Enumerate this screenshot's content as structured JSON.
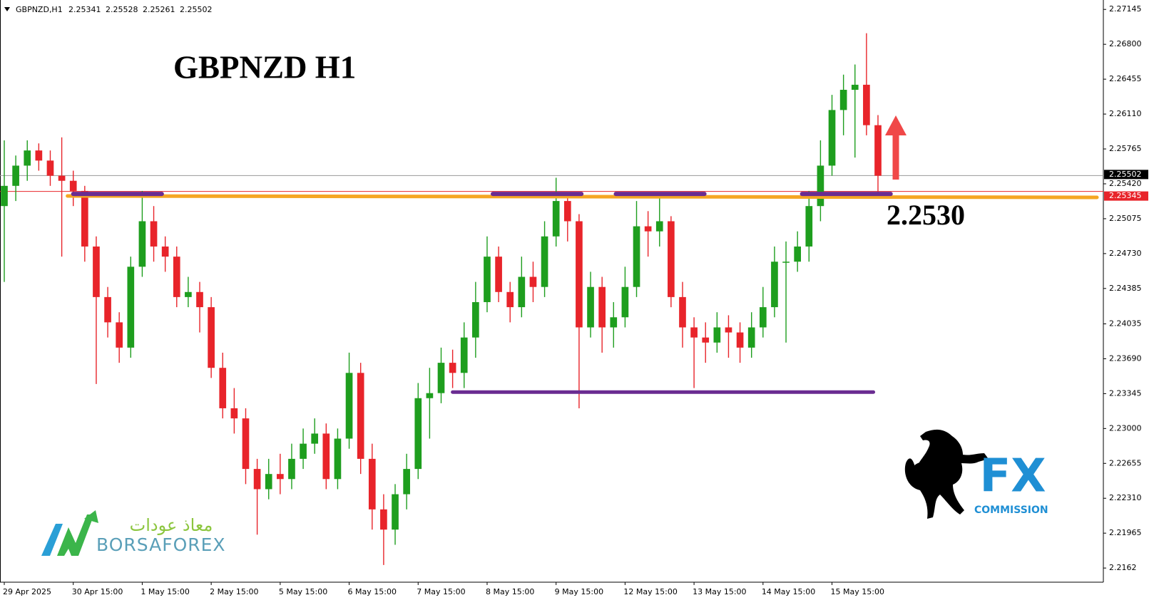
{
  "chart_data": {
    "type": "candlestick",
    "title": "GBPNZD   H1",
    "header_symbol": "GBPNZD,H1",
    "header_ohlc": [
      2.25341,
      2.25528,
      2.25261,
      2.25502
    ],
    "categories": [
      "29 Apr 2025",
      null,
      null,
      null,
      null,
      null,
      "30 Apr 15:00",
      null,
      null,
      null,
      null,
      null,
      "1 May 15:00",
      null,
      null,
      null,
      null,
      null,
      "2 May 15:00",
      null,
      null,
      null,
      null,
      null,
      "5 May 15:00",
      null,
      null,
      null,
      null,
      null,
      "6 May 15:00",
      null,
      null,
      null,
      null,
      null,
      "7 May 15:00",
      null,
      null,
      null,
      null,
      null,
      "8 May 15:00",
      null,
      null,
      null,
      null,
      null,
      "9 May 15:00",
      null,
      null,
      null,
      null,
      null,
      "12 May 15:00",
      null,
      null,
      null,
      null,
      null,
      "13 May 15:00",
      null,
      null,
      null,
      null,
      null,
      "14 May 15:00",
      null,
      null,
      null,
      null,
      null,
      "15 May 15:00",
      null,
      null,
      null,
      null
    ],
    "open": [
      2.252,
      2.254,
      2.256,
      2.2575,
      2.2565,
      2.255,
      2.2545,
      2.2535,
      2.248,
      2.243,
      2.2405,
      2.238,
      2.246,
      2.2505,
      2.248,
      2.247,
      2.243,
      2.2435,
      2.242,
      2.236,
      2.232,
      2.231,
      2.226,
      2.224,
      2.2255,
      2.225,
      2.227,
      2.2285,
      2.2295,
      2.225,
      2.229,
      2.2355,
      2.227,
      2.222,
      2.22,
      2.2235,
      2.226,
      2.233,
      2.2335,
      2.2365,
      2.2355,
      2.239,
      2.2425,
      2.247,
      2.2435,
      2.242,
      2.245,
      2.244,
      2.249,
      2.2525,
      2.2505,
      2.24,
      2.244,
      2.24,
      2.241,
      2.244,
      2.25,
      2.2495,
      2.2505,
      2.243,
      2.24,
      2.239,
      2.2385,
      2.24,
      2.2395,
      2.238,
      2.24,
      2.242,
      2.2465,
      2.2465,
      2.248,
      2.252,
      2.256,
      2.2615,
      2.2635,
      2.264,
      2.26
    ],
    "high": [
      2.2585,
      2.257,
      2.2585,
      2.2582,
      2.2575,
      2.2588,
      2.2555,
      2.254,
      2.249,
      2.244,
      2.2415,
      2.247,
      2.2535,
      2.252,
      2.249,
      2.248,
      2.245,
      2.2445,
      2.243,
      2.2375,
      2.234,
      2.232,
      2.227,
      2.227,
      2.2275,
      2.2285,
      2.23,
      2.231,
      2.2305,
      2.23,
      2.2375,
      2.2365,
      2.2285,
      2.2235,
      2.2245,
      2.2275,
      2.2345,
      2.236,
      2.238,
      2.2378,
      2.2405,
      2.2445,
      2.249,
      2.248,
      2.2445,
      2.247,
      2.2465,
      2.2505,
      2.2548,
      2.253,
      2.2512,
      2.2455,
      2.245,
      2.2425,
      2.246,
      2.2525,
      2.2515,
      2.2532,
      2.251,
      2.2445,
      2.241,
      2.2405,
      2.2415,
      2.2412,
      2.2405,
      2.2415,
      2.244,
      2.248,
      2.2485,
      2.2495,
      2.2535,
      2.2585,
      2.263,
      2.265,
      2.266,
      2.2691,
      2.261
    ],
    "low": [
      2.2445,
      2.2525,
      2.2545,
      2.2555,
      2.254,
      2.247,
      2.252,
      2.2465,
      2.2344,
      2.239,
      2.2365,
      2.237,
      2.245,
      2.2465,
      2.2455,
      2.242,
      2.242,
      2.2395,
      2.235,
      2.231,
      2.2295,
      2.2245,
      2.2195,
      2.223,
      2.2235,
      2.224,
      2.226,
      2.2275,
      2.224,
      2.224,
      2.228,
      2.2255,
      2.22,
      2.2165,
      2.2185,
      2.222,
      2.225,
      2.229,
      2.2325,
      2.234,
      2.234,
      2.237,
      2.2415,
      2.2425,
      2.2405,
      2.241,
      2.2425,
      2.243,
      2.248,
      2.2485,
      2.232,
      2.239,
      2.2375,
      2.238,
      2.24,
      2.243,
      2.247,
      2.248,
      2.242,
      2.238,
      2.234,
      2.2365,
      2.2375,
      2.237,
      2.2365,
      2.237,
      2.239,
      2.241,
      2.2385,
      2.2455,
      2.2465,
      2.2505,
      2.255,
      2.259,
      2.2568,
      2.259,
      2.253
    ],
    "close": [
      2.254,
      2.256,
      2.2575,
      2.2565,
      2.255,
      2.2545,
      2.2535,
      2.248,
      2.243,
      2.2405,
      2.238,
      2.246,
      2.2505,
      2.248,
      2.247,
      2.243,
      2.2435,
      2.242,
      2.236,
      2.232,
      2.231,
      2.226,
      2.224,
      2.2255,
      2.225,
      2.227,
      2.2285,
      2.2295,
      2.225,
      2.229,
      2.2355,
      2.227,
      2.222,
      2.22,
      2.2235,
      2.226,
      2.233,
      2.2335,
      2.2365,
      2.2355,
      2.239,
      2.2425,
      2.247,
      2.2435,
      2.242,
      2.245,
      2.244,
      2.249,
      2.2525,
      2.2505,
      2.24,
      2.244,
      2.24,
      2.241,
      2.244,
      2.25,
      2.2495,
      2.2505,
      2.243,
      2.24,
      2.239,
      2.2385,
      2.24,
      2.2395,
      2.238,
      2.24,
      2.242,
      2.2465,
      2.2465,
      2.248,
      2.252,
      2.256,
      2.2615,
      2.2635,
      2.264,
      2.26,
      2.255
    ],
    "up_color": "#1e9e1e",
    "down_color": "#e8242a",
    "ylim": [
      2.2148,
      2.2721
    ],
    "yticks": [
      2.27145,
      {
        "value": 2.268,
        "label": "2.26800"
      },
      2.26455,
      {
        "value": 2.2611,
        "label": "2.26110"
      },
      2.25765,
      {
        "value": 2.2542,
        "label": "2.25420"
      },
      2.25075,
      {
        "value": 2.2473,
        "label": "2.24730"
      },
      2.24385,
      2.24035,
      {
        "value": 2.2369,
        "label": "2.23690"
      },
      2.23345,
      {
        "value": 2.23,
        "label": "2.23000"
      },
      2.22655,
      {
        "value": 2.2231,
        "label": "2.22310"
      },
      2.21965,
      2.2162
    ],
    "price_lines": [
      {
        "value": 2.25502,
        "color": "#000000"
      },
      {
        "value": 2.25345,
        "color": "#e8242a"
      }
    ],
    "level": {
      "value": 2.253,
      "label": "2.2530",
      "color": "#f5a623"
    },
    "resistance_level": 2.2532,
    "support_level": 2.2336,
    "marker_color": "#6a2c91"
  },
  "branding": {
    "left_arabic": "معاذ عودات",
    "left_latin": "BORSAFOREX",
    "right_mark": "FX",
    "right_caption": "COMMISSION"
  }
}
